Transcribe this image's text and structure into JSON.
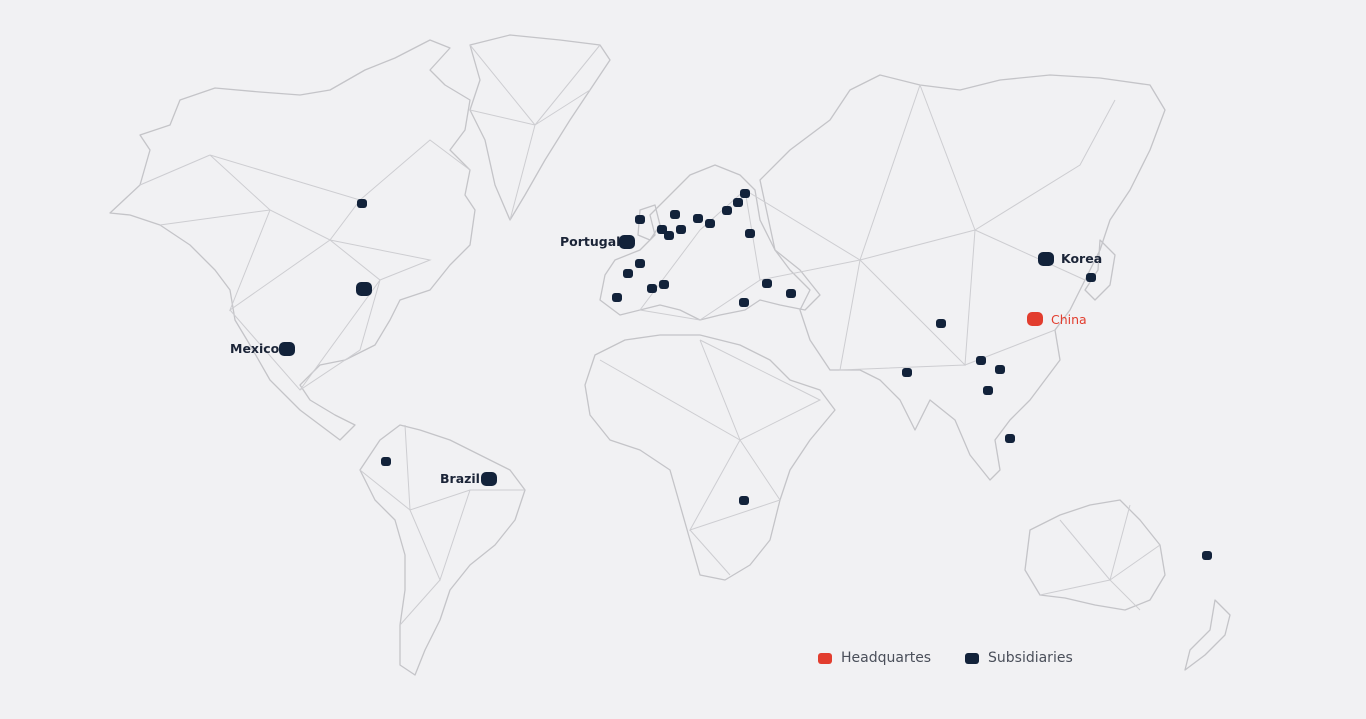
{
  "map": {
    "labels": {
      "portugal": "Portugal",
      "mexico": "Mexico",
      "brazil": "Brazil",
      "korea": "Korea",
      "china": "China"
    },
    "colors": {
      "headquarters": "#e23d2e",
      "subsidiary": "#12223a",
      "land_outline": "#c4c4c8",
      "background": "#f1f1f3"
    },
    "marker_count": {
      "subsidiaries": 42,
      "headquarters": 1
    }
  },
  "legend": {
    "headquarters_label": "Headquartes",
    "subsidiaries_label": "Subsidiaries"
  }
}
